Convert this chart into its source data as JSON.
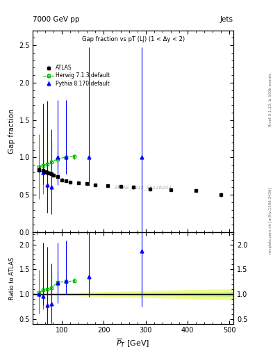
{
  "title": "Gap fraction vs pT (LJ) (1 < Δy < 2)",
  "header_left": "7000 GeV pp",
  "header_right": "Jets",
  "right_label_top": "Rivet 3.1.10, ≥ 100k events",
  "right_label_bot": "mcplots.cern.ch [arXiv:1306.3436]",
  "watermark": "ATLAS_2011_S9126244",
  "xlabel": "$\\overline{P}_T$ [GeV]",
  "ylabel_main": "Gap fraction",
  "ylabel_ratio": "Ratio to ATLAS",
  "xlim": [
    30,
    510
  ],
  "ylim_main": [
    0.0,
    2.7
  ],
  "ylim_ratio": [
    0.4,
    2.25
  ],
  "atlas_x": [
    45,
    55,
    60,
    65,
    70,
    75,
    80,
    90,
    100,
    110,
    120,
    140,
    160,
    180,
    210,
    240,
    270,
    310,
    360,
    420,
    480
  ],
  "atlas_y": [
    0.84,
    0.83,
    0.81,
    0.8,
    0.79,
    0.78,
    0.76,
    0.74,
    0.7,
    0.69,
    0.67,
    0.66,
    0.65,
    0.63,
    0.62,
    0.61,
    0.6,
    0.58,
    0.57,
    0.56,
    0.5
  ],
  "atlas_yerr": [
    0.03,
    0.02,
    0.02,
    0.02,
    0.02,
    0.02,
    0.02,
    0.02,
    0.02,
    0.02,
    0.02,
    0.02,
    0.02,
    0.02,
    0.02,
    0.02,
    0.02,
    0.02,
    0.02,
    0.02,
    0.03
  ],
  "atlas_color": "black",
  "herwig_x": [
    45,
    55,
    65,
    75,
    90,
    110,
    130
  ],
  "herwig_y": [
    0.87,
    0.895,
    0.91,
    0.94,
    0.98,
    1.005,
    1.01
  ],
  "herwig_yerr_lo": [
    0.42,
    0.38,
    0.32,
    0.22,
    0.12,
    0.06,
    0.03
  ],
  "herwig_yerr_hi": [
    0.44,
    0.42,
    0.38,
    0.3,
    0.18,
    0.06,
    0.03
  ],
  "herwig_color": "#00bb00",
  "pythia_x": [
    45,
    55,
    65,
    75,
    90,
    110,
    165,
    290
  ],
  "pythia_y": [
    0.84,
    0.8,
    0.635,
    0.605,
    1.0,
    1.0,
    1.0,
    1.0
  ],
  "pythia_yerr_lo": [
    0.04,
    0.16,
    0.38,
    0.36,
    0.37,
    0.22,
    0.38,
    1.07
  ],
  "pythia_yerr_hi": [
    0.04,
    0.92,
    1.12,
    0.77,
    0.77,
    0.77,
    1.47,
    1.47
  ],
  "pythia_color": "#0000ff",
  "ratio_herwig_x": [
    45,
    55,
    65,
    75,
    90,
    110,
    130
  ],
  "ratio_herwig_y": [
    1.035,
    1.08,
    1.1,
    1.13,
    1.245,
    1.255,
    1.27
  ],
  "ratio_herwig_yerr_lo": [
    0.42,
    0.38,
    0.32,
    0.22,
    0.12,
    0.06,
    0.03
  ],
  "ratio_herwig_yerr_hi": [
    0.46,
    0.42,
    0.38,
    0.3,
    0.2,
    0.1,
    0.05
  ],
  "ratio_pythia_x": [
    45,
    55,
    65,
    75,
    90,
    110,
    165,
    290
  ],
  "ratio_pythia_y": [
    1.0,
    0.965,
    0.78,
    0.805,
    1.225,
    1.265,
    1.355,
    1.87
  ],
  "ratio_pythia_yerr_lo": [
    0.05,
    0.19,
    0.41,
    0.39,
    0.41,
    0.26,
    0.41,
    1.12
  ],
  "ratio_pythia_yerr_hi": [
    0.05,
    1.07,
    1.17,
    0.82,
    0.82,
    0.82,
    1.52,
    1.52
  ],
  "band_x": [
    30,
    100,
    200,
    300,
    400,
    510
  ],
  "band_yellow_hi": [
    1.02,
    1.02,
    1.04,
    1.06,
    1.08,
    1.1
  ],
  "band_yellow_lo": [
    0.98,
    0.98,
    0.96,
    0.94,
    0.92,
    0.9
  ],
  "band_green_hi": [
    1.01,
    1.01,
    1.015,
    1.02,
    1.025,
    1.03
  ],
  "band_green_lo": [
    0.99,
    0.99,
    0.985,
    0.98,
    0.975,
    0.97
  ],
  "atlas_band_inner_color": "#88dd88",
  "atlas_band_outer_color": "#eeff88"
}
